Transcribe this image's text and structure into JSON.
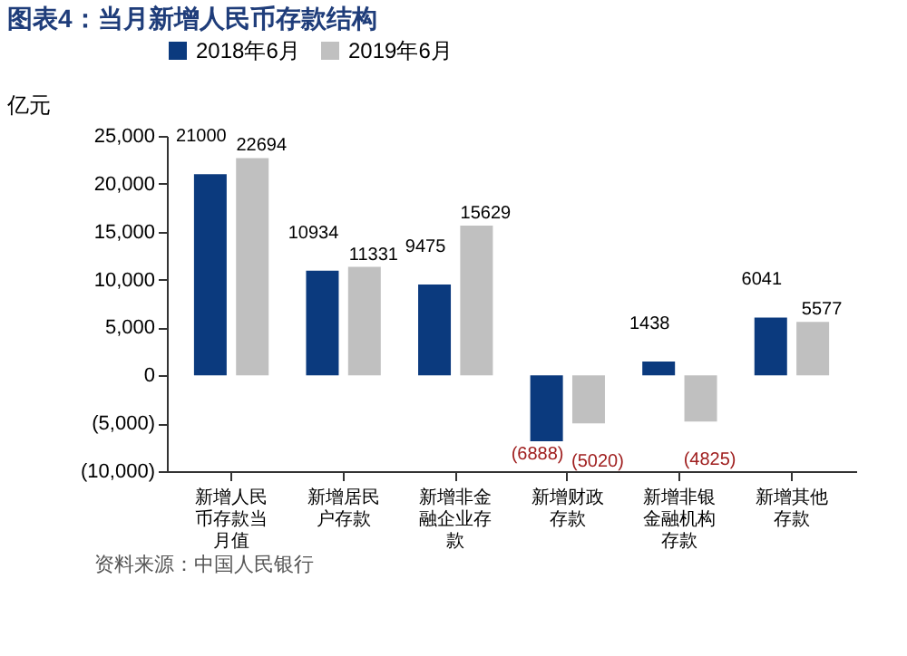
{
  "chart_data": {
    "type": "bar",
    "title": "图表4：当月新增人民币存款结构",
    "ylabel": "亿元",
    "categories": [
      "新增人民币存款当月值",
      "新增居民户存款",
      "新增非金融企业存款",
      "新增财政存款",
      "新增非银金融机构存款",
      "新增其他存款"
    ],
    "series": [
      {
        "name": "2018年6月",
        "color": "#0b3a7e",
        "values": [
          21000,
          10934,
          9475,
          -6888,
          1438,
          6041
        ],
        "value_labels": [
          "21000",
          "10934",
          "9475",
          "(6888)",
          "1438",
          "6041"
        ]
      },
      {
        "name": "2019年6月",
        "color": "#c0c0c0",
        "values": [
          22694,
          11331,
          15629,
          -5020,
          -4825,
          5577
        ],
        "value_labels": [
          "22694",
          "11331",
          "15629",
          "(5020)",
          "(4825)",
          "5577"
        ]
      }
    ],
    "ylim": [
      -10000,
      25000
    ],
    "yticks": [
      {
        "value": -10000,
        "label": "(10,000)"
      },
      {
        "value": -5000,
        "label": "(5,000)"
      },
      {
        "value": 0,
        "label": "0"
      },
      {
        "value": 5000,
        "label": "5,000"
      },
      {
        "value": 10000,
        "label": "10,000"
      },
      {
        "value": 15000,
        "label": "15,000"
      },
      {
        "value": 20000,
        "label": "20,000"
      },
      {
        "value": 25000,
        "label": "25,000"
      }
    ],
    "grid": false,
    "legend": "top",
    "annotations": [
      "资料来源：中国人民银行"
    ]
  }
}
